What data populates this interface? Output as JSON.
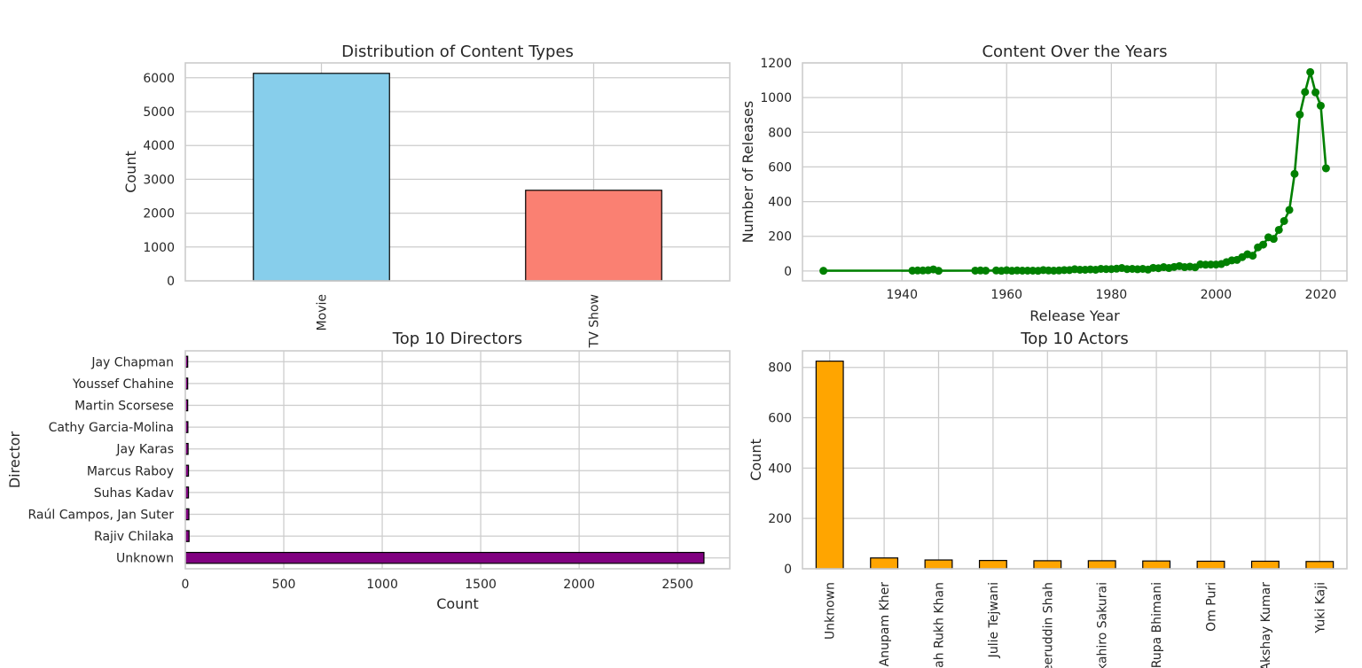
{
  "chart_data": [
    {
      "type": "bar",
      "title": "Distribution of Content Types",
      "xlabel": "",
      "ylabel": "Count",
      "categories": [
        "Movie",
        "TV Show"
      ],
      "values": [
        6131,
        2676
      ],
      "ylim": [
        0,
        6440
      ],
      "yticks": [
        0,
        1000,
        2000,
        3000,
        4000,
        5000,
        6000
      ],
      "colors": [
        "#87ceeb",
        "#fa8072"
      ],
      "grid": true
    },
    {
      "type": "line",
      "title": "Content Over the Years",
      "xlabel": "Release Year",
      "ylabel": "Number of Releases",
      "xlim": [
        1921,
        2025
      ],
      "ylim": [
        -57,
        1200
      ],
      "xticks": [
        1940,
        1960,
        1980,
        2000,
        2020
      ],
      "yticks": [
        0,
        200,
        400,
        600,
        800,
        1000,
        1200
      ],
      "color": "#008000",
      "grid": true,
      "series": [
        {
          "x": [
            1925,
            1942,
            1943,
            1944,
            1945,
            1946,
            1947,
            1954,
            1955,
            1956,
            1958,
            1959,
            1960,
            1961,
            1962,
            1963,
            1964,
            1965,
            1966,
            1967,
            1968,
            1969,
            1970,
            1971,
            1972,
            1973,
            1974,
            1975,
            1976,
            1977,
            1978,
            1979,
            1980,
            1981,
            1982,
            1983,
            1984,
            1985,
            1986,
            1987,
            1988,
            1989,
            1990,
            1991,
            1992,
            1993,
            1994,
            1995,
            1996,
            1997,
            1998,
            1999,
            2000,
            2001,
            2002,
            2003,
            2004,
            2005,
            2006,
            2007,
            2008,
            2009,
            2010,
            2011,
            2012,
            2013,
            2014,
            2015,
            2016,
            2017,
            2018,
            2019,
            2020,
            2021
          ],
          "y": [
            1,
            2,
            3,
            3,
            4,
            9,
            1,
            2,
            3,
            2,
            3,
            1,
            4,
            1,
            3,
            2,
            2,
            2,
            1,
            5,
            3,
            2,
            3,
            5,
            5,
            10,
            7,
            7,
            9,
            7,
            12,
            11,
            11,
            13,
            17,
            11,
            12,
            10,
            12,
            8,
            18,
            16,
            22,
            17,
            23,
            28,
            22,
            25,
            21,
            38,
            36,
            37,
            37,
            40,
            51,
            61,
            64,
            80,
            96,
            88,
            136,
            152,
            194,
            185,
            237,
            288,
            352,
            560,
            902,
            1032,
            1147,
            1030,
            953,
            592
          ]
        }
      ]
    },
    {
      "type": "bar",
      "orientation": "horizontal",
      "title": "Top 10 Directors",
      "xlabel": "Count",
      "ylabel": "Director",
      "categories": [
        "Unknown",
        "Rajiv Chilaka",
        "Raúl Campos, Jan Suter",
        "Suhas Kadav",
        "Marcus Raboy",
        "Jay Karas",
        "Cathy Garcia-Molina",
        "Martin Scorsese",
        "Youssef Chahine",
        "Jay Chapman"
      ],
      "values": [
        2634,
        19,
        18,
        16,
        16,
        14,
        13,
        12,
        12,
        12
      ],
      "xlim": [
        0,
        2765
      ],
      "xticks": [
        0,
        500,
        1000,
        1500,
        2000,
        2500
      ],
      "color": "#800080",
      "grid": true
    },
    {
      "type": "bar",
      "title": "Top 10 Actors",
      "xlabel": "",
      "ylabel": "Count",
      "categories": [
        "Unknown",
        "Anupam Kher",
        "Shah Rukh Khan",
        "Julie Tejwani",
        "Naseeruddin Shah",
        "Takahiro Sakurai",
        "Rupa Bhimani",
        "Om Puri",
        "Akshay Kumar",
        "Yuki Kaji"
      ],
      "values": [
        825,
        43,
        35,
        33,
        32,
        32,
        31,
        30,
        30,
        29
      ],
      "ylim": [
        0,
        866
      ],
      "yticks": [
        0,
        200,
        400,
        600,
        800
      ],
      "color": "#ffa500",
      "grid": true
    }
  ]
}
